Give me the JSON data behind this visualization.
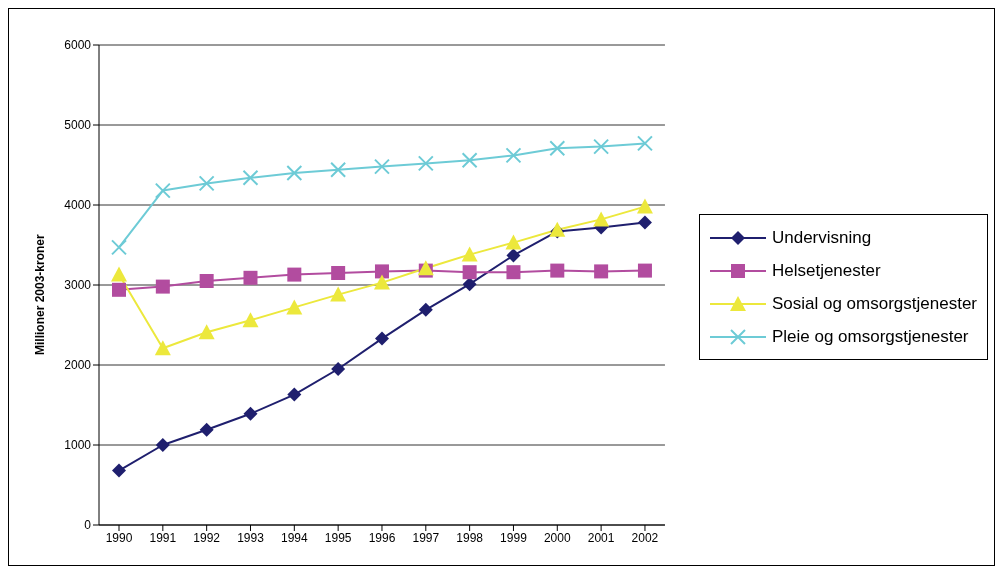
{
  "chart_data": {
    "type": "line",
    "ylabel": "Millioner 2003-kroner",
    "categories": [
      "1990",
      "1991",
      "1992",
      "1993",
      "1994",
      "1995",
      "1996",
      "1997",
      "1998",
      "1999",
      "2000",
      "2001",
      "2002"
    ],
    "ylim": [
      0,
      6000
    ],
    "yticks": [
      0,
      1000,
      2000,
      3000,
      4000,
      5000,
      6000
    ],
    "grid": "y",
    "legend": "right",
    "series": [
      {
        "name": "Undervisning",
        "color": "#1f1f6e",
        "marker": "diamond",
        "values": [
          680,
          1000,
          1190,
          1390,
          1630,
          1950,
          2330,
          2690,
          3010,
          3370,
          3670,
          3720,
          3780
        ]
      },
      {
        "name": "Helsetjenester",
        "color": "#b24c9f",
        "marker": "square",
        "values": [
          2940,
          2980,
          3050,
          3090,
          3130,
          3150,
          3170,
          3180,
          3160,
          3160,
          3180,
          3170,
          3180
        ]
      },
      {
        "name": "Sosial og omsorgstjenester",
        "color": "#ece83c",
        "marker": "triangle",
        "values": [
          3130,
          2210,
          2410,
          2560,
          2720,
          2880,
          3030,
          3210,
          3380,
          3530,
          3690,
          3820,
          3980
        ]
      },
      {
        "name": "Pleie og omsorgstjenester",
        "color": "#6dcbd6",
        "marker": "cross",
        "values": [
          3470,
          4180,
          4270,
          4340,
          4400,
          4440,
          4480,
          4520,
          4560,
          4620,
          4710,
          4730,
          4770
        ]
      }
    ]
  }
}
